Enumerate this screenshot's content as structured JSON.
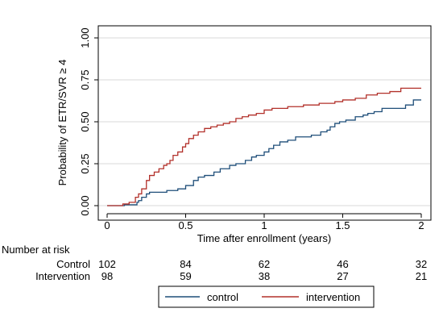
{
  "chart_data": {
    "type": "line",
    "subtype": "kaplan-meier-step",
    "title": "",
    "xlabel": "Time after enrollment (years)",
    "ylabel": "Probability of ETR/SVR ≥ 4",
    "xlim": [
      0,
      2
    ],
    "ylim": [
      0,
      1
    ],
    "x_ticks": [
      0,
      0.5,
      1,
      1.5,
      2
    ],
    "x_tick_labels": [
      "0",
      "0.5",
      "1",
      "1.5",
      "2"
    ],
    "y_ticks": [
      0,
      0.25,
      0.5,
      0.75,
      1
    ],
    "y_tick_labels": [
      "0.00",
      "0.25",
      "0.50",
      "0.75",
      "1.00"
    ],
    "grid": "horizontal",
    "legend_position": "bottom",
    "series": [
      {
        "name": "control",
        "color": "#1f4e79",
        "x": [
          0,
          0.11,
          0.19,
          0.2,
          0.22,
          0.25,
          0.27,
          0.3,
          0.38,
          0.45,
          0.5,
          0.55,
          0.58,
          0.62,
          0.68,
          0.72,
          0.78,
          0.82,
          0.88,
          0.92,
          0.95,
          1.0,
          1.03,
          1.06,
          1.1,
          1.15,
          1.2,
          1.3,
          1.36,
          1.4,
          1.42,
          1.45,
          1.48,
          1.52,
          1.58,
          1.63,
          1.66,
          1.7,
          1.75,
          1.9,
          1.95,
          2.0
        ],
        "y": [
          0,
          0.005,
          0.02,
          0.03,
          0.05,
          0.07,
          0.08,
          0.08,
          0.09,
          0.1,
          0.12,
          0.15,
          0.17,
          0.18,
          0.2,
          0.22,
          0.24,
          0.25,
          0.27,
          0.29,
          0.3,
          0.32,
          0.34,
          0.36,
          0.38,
          0.39,
          0.41,
          0.42,
          0.44,
          0.45,
          0.47,
          0.49,
          0.5,
          0.51,
          0.53,
          0.54,
          0.55,
          0.56,
          0.58,
          0.6,
          0.63,
          0.63
        ]
      },
      {
        "name": "intervention",
        "color": "#b2302a",
        "x": [
          0,
          0.1,
          0.14,
          0.18,
          0.2,
          0.22,
          0.25,
          0.27,
          0.3,
          0.33,
          0.36,
          0.38,
          0.4,
          0.42,
          0.45,
          0.48,
          0.5,
          0.52,
          0.55,
          0.58,
          0.62,
          0.66,
          0.7,
          0.74,
          0.78,
          0.82,
          0.86,
          0.9,
          0.95,
          1.0,
          1.05,
          1.15,
          1.25,
          1.35,
          1.45,
          1.5,
          1.58,
          1.65,
          1.72,
          1.8,
          1.87,
          2.0
        ],
        "y": [
          0,
          0.01,
          0.02,
          0.05,
          0.07,
          0.1,
          0.15,
          0.18,
          0.2,
          0.22,
          0.24,
          0.25,
          0.27,
          0.3,
          0.32,
          0.35,
          0.37,
          0.4,
          0.42,
          0.44,
          0.46,
          0.47,
          0.48,
          0.49,
          0.5,
          0.52,
          0.53,
          0.54,
          0.55,
          0.57,
          0.58,
          0.59,
          0.6,
          0.61,
          0.62,
          0.63,
          0.64,
          0.66,
          0.67,
          0.68,
          0.7,
          0.7
        ]
      }
    ],
    "risk_table": {
      "title": "Number at risk",
      "rows": [
        {
          "label": "Control",
          "counts": [
            "102",
            "84",
            "62",
            "46",
            "32"
          ]
        },
        {
          "label": "Intervention",
          "counts": [
            "98",
            "59",
            "38",
            "27",
            "21"
          ]
        }
      ]
    }
  }
}
